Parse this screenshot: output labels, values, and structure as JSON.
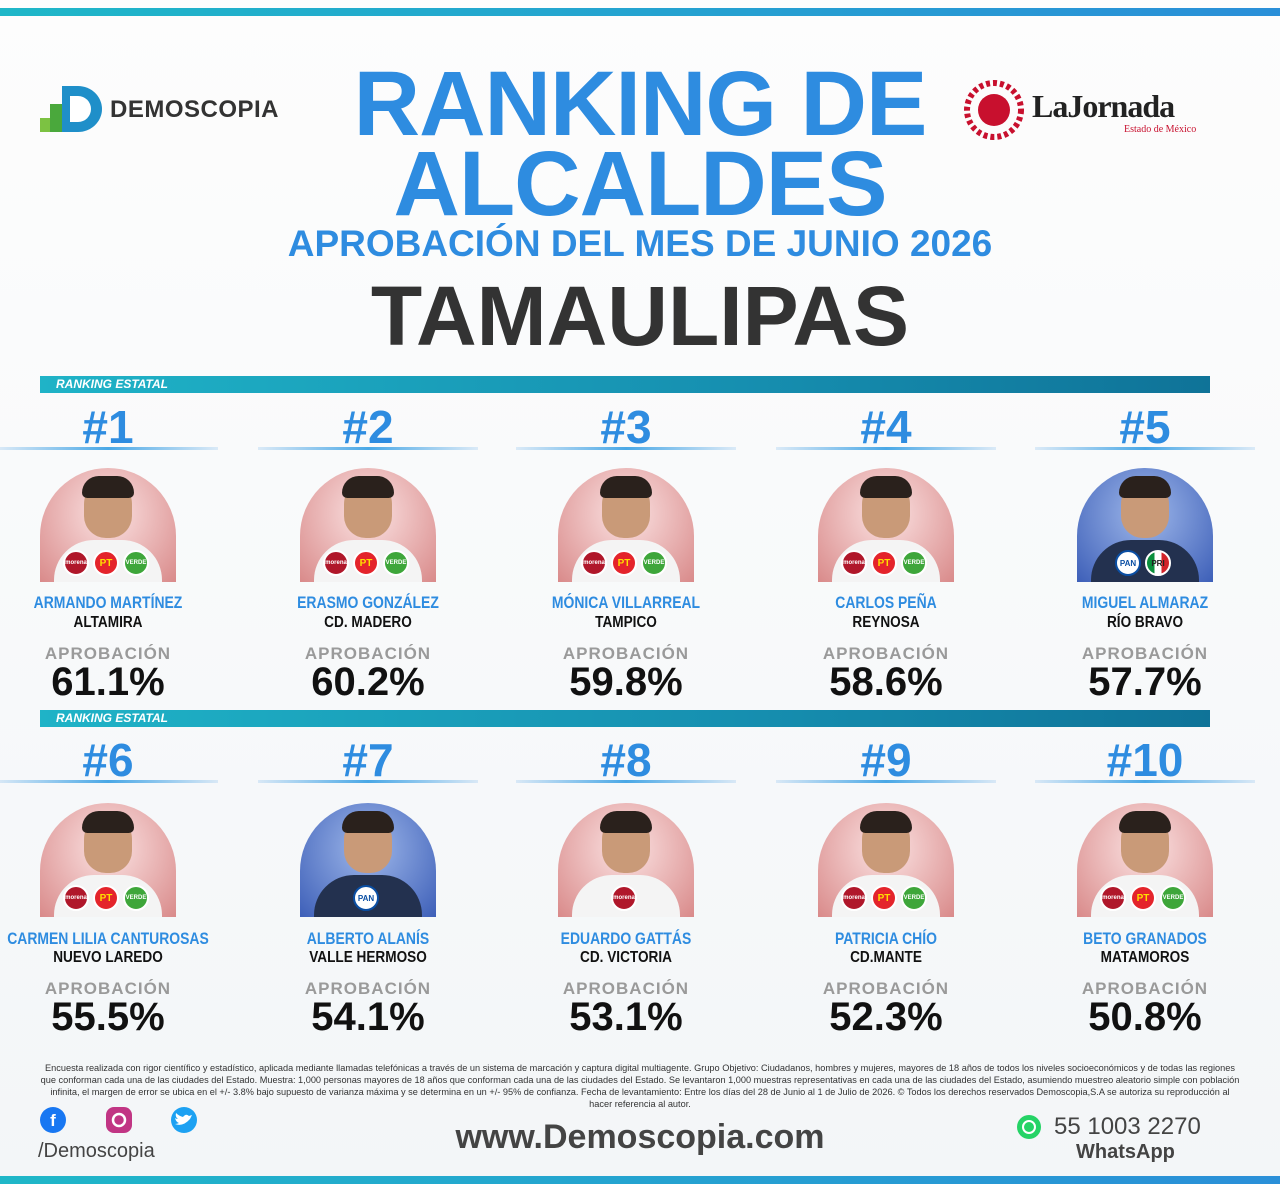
{
  "header": {
    "logo_left": "DEMOSCOPIA",
    "title_line1": "RANKING DE",
    "title_line2": "ALCALDES",
    "subtitle": "APROBACIÓN DEL MES DE JUNIO 2026",
    "state": "TAMAULIPAS",
    "logo_right": "LaJornada",
    "logo_right_sub": "Estado de México"
  },
  "sections": [
    {
      "label": "RANKING ESTATAL"
    },
    {
      "label": "RANKING ESTATAL"
    }
  ],
  "mayors": [
    {
      "rank": "#1",
      "name": "ARMANDO MARTÍNEZ",
      "city": "ALTAMIRA",
      "approval_label": "APROBACIÓN",
      "approval": "61.1%",
      "parties": [
        "morena",
        "PT",
        "VERDE"
      ]
    },
    {
      "rank": "#2",
      "name": "ERASMO GONZÁLEZ",
      "city": "CD. MADERO",
      "approval_label": "APROBACIÓN",
      "approval": "60.2%",
      "parties": [
        "morena",
        "PT",
        "VERDE"
      ]
    },
    {
      "rank": "#3",
      "name": "MÓNICA VILLARREAL",
      "city": "TAMPICO",
      "approval_label": "APROBACIÓN",
      "approval": "59.8%",
      "parties": [
        "morena",
        "PT",
        "VERDE"
      ]
    },
    {
      "rank": "#4",
      "name": "CARLOS PEÑA",
      "city": "REYNOSA",
      "approval_label": "APROBACIÓN",
      "approval": "58.6%",
      "parties": [
        "morena",
        "PT",
        "VERDE"
      ]
    },
    {
      "rank": "#5",
      "name": "MIGUEL ALMARAZ",
      "city": "RÍO BRAVO",
      "approval_label": "APROBACIÓN",
      "approval": "57.7%",
      "parties": [
        "PAN",
        "PRI"
      ]
    },
    {
      "rank": "#6",
      "name": "CARMEN LILIA CANTUROSAS",
      "city": "NUEVO LAREDO",
      "approval_label": "APROBACIÓN",
      "approval": "55.5%",
      "parties": [
        "morena",
        "PT",
        "VERDE"
      ]
    },
    {
      "rank": "#7",
      "name": "ALBERTO ALANÍS",
      "city": "VALLE HERMOSO",
      "approval_label": "APROBACIÓN",
      "approval": "54.1%",
      "parties": [
        "PAN"
      ]
    },
    {
      "rank": "#8",
      "name": "EDUARDO GATTÁS",
      "city": "CD. VICTORIA",
      "approval_label": "APROBACIÓN",
      "approval": "53.1%",
      "parties": [
        "morena"
      ]
    },
    {
      "rank": "#9",
      "name": "PATRICIA CHÍO",
      "city": "CD.MANTE",
      "approval_label": "APROBACIÓN",
      "approval": "52.3%",
      "parties": [
        "morena",
        "PT",
        "VERDE"
      ]
    },
    {
      "rank": "#10",
      "name": "BETO GRANADOS",
      "city": "MATAMOROS",
      "approval_label": "APROBACIÓN",
      "approval": "50.8%",
      "parties": [
        "morena",
        "PT",
        "VERDE"
      ]
    }
  ],
  "footer": {
    "disclaimer": "Encuesta realizada con rigor científico y estadístico, aplicada mediante llamadas telefónicas a través de un sistema de marcación y captura digital multiagente. Grupo Objetivo: Ciudadanos, hombres y mujeres, mayores de 18 años de todos los niveles socioeconómicos y de todas las regiones que conforman cada una de las ciudades del Estado. Muestra: 1,000 personas mayores de 18 años que conforman cada una de las ciudades del Estado. Se levantaron 1,000 muestras representativas en cada una de las ciudades del Estado, asumiendo muestreo aleatorio simple con población infinita, el margen de error se ubica en el +/- 3.8% bajo supuesto de varianza máxima y se determina en un +/- 95% de confianza. Fecha de levantamiento: Entre los días del 28 de Junio al 1 de Julio de 2026. © Todos los derechos reservados Demoscopia,S.A se autoriza su reproducción al hacer referencia al autor.",
    "social_handle": "/Demoscopia",
    "website": "www.Demoscopia.com",
    "phone": "55 1003 2270",
    "phone_label": "WhatsApp"
  }
}
